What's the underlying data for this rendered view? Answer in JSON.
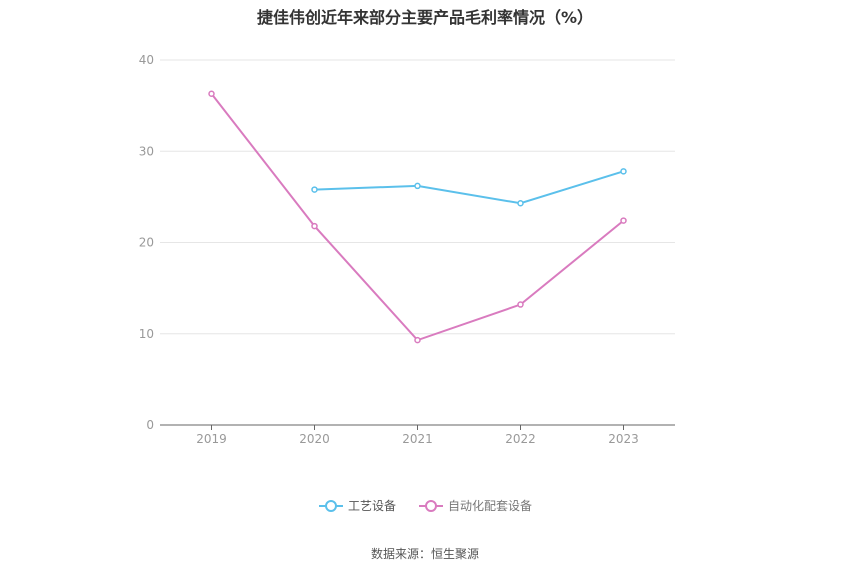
{
  "chart_data": {
    "type": "line",
    "title": "捷佳伟创近年来部分主要产品毛利率情况（%）",
    "categories": [
      "2019",
      "2020",
      "2021",
      "2022",
      "2023"
    ],
    "ylim": [
      0,
      40
    ],
    "yticks": [
      0,
      10,
      20,
      30,
      40
    ],
    "grid": true,
    "legend_position": "bottom",
    "series": [
      {
        "name": "工艺设备",
        "color": "#5bc0eb",
        "values": [
          null,
          25.8,
          26.2,
          24.3,
          27.8
        ]
      },
      {
        "name": "自动化配套设备",
        "color": "#d97bbf",
        "values": [
          36.3,
          21.8,
          9.3,
          13.2,
          22.4
        ]
      }
    ]
  },
  "source": "数据来源：恒生聚源"
}
